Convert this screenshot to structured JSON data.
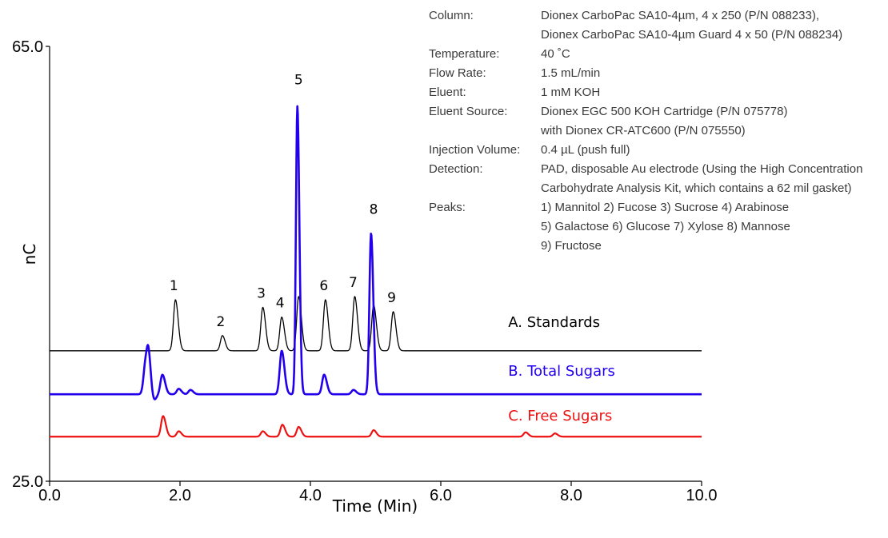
{
  "chart_data": {
    "type": "line",
    "xlabel": "Time (Min)",
    "ylabel": "nC",
    "xlim": [
      0,
      10
    ],
    "ylim": [
      25,
      65
    ],
    "x_ticks": [
      "0.0",
      "2.0",
      "4.0",
      "6.0",
      "8.0",
      "10.0"
    ],
    "y_ticks": [
      "25.0",
      "65.0"
    ],
    "grid": false,
    "series": [
      {
        "name": "A. Standards",
        "color": "#000000",
        "baseline": 37.0,
        "peaks": [
          {
            "label": "1",
            "x": 1.93,
            "y": 41.7
          },
          {
            "label": "2",
            "x": 2.65,
            "y": 38.4
          },
          {
            "label": "3",
            "x": 3.27,
            "y": 41.0
          },
          {
            "label": "4",
            "x": 3.56,
            "y": 40.1
          },
          {
            "label": "5",
            "x": 3.82,
            "y": 42.0
          },
          {
            "label": "6",
            "x": 4.23,
            "y": 41.7
          },
          {
            "label": "7",
            "x": 4.68,
            "y": 42.0
          },
          {
            "label": "8",
            "x": 4.97,
            "y": 41.2
          },
          {
            "label": "9",
            "x": 5.27,
            "y": 40.6
          }
        ]
      },
      {
        "name": "B. Total Sugars",
        "color": "#2200ee",
        "baseline": 33.0,
        "peaks": [
          {
            "x": 1.47,
            "y": 35.6
          },
          {
            "x": 1.52,
            "y": 36.1
          },
          {
            "x": 1.58,
            "y": 32.0
          },
          {
            "x": 1.73,
            "y": 34.8
          },
          {
            "x": 1.98,
            "y": 33.5
          },
          {
            "x": 2.16,
            "y": 33.4
          },
          {
            "x": 3.56,
            "y": 37.0
          },
          {
            "x": 3.8,
            "y": 59.5
          },
          {
            "x": 4.21,
            "y": 34.8
          },
          {
            "x": 4.66,
            "y": 33.4
          },
          {
            "x": 4.93,
            "y": 47.8
          }
        ]
      },
      {
        "name": "C. Free Sugars",
        "color": "#ee1111",
        "baseline": 29.1,
        "peaks": [
          {
            "x": 1.74,
            "y": 31.0
          },
          {
            "x": 1.98,
            "y": 29.6
          },
          {
            "x": 3.27,
            "y": 29.6
          },
          {
            "x": 3.57,
            "y": 30.2
          },
          {
            "x": 3.82,
            "y": 30.0
          },
          {
            "x": 4.97,
            "y": 29.7
          },
          {
            "x": 7.3,
            "y": 29.5
          },
          {
            "x": 7.75,
            "y": 29.4
          }
        ]
      }
    ],
    "annotations": [
      {
        "label": "Column:",
        "value": "Dionex CarboPac SA10-4µm, 4 x 250 (P/N 088233),"
      },
      {
        "label": "",
        "value": "Dionex CarboPac SA10-4µm Guard 4 x 50 (P/N 088234)"
      },
      {
        "label": "Temperature:",
        "value": "40 ˚C"
      },
      {
        "label": "Flow Rate:",
        "value": "1.5 mL/min"
      },
      {
        "label": "Eluent:",
        "value": "1 mM KOH"
      },
      {
        "label": "Eluent Source:",
        "value": "Dionex EGC 500 KOH Cartridge (P/N 075778)"
      },
      {
        "label": "",
        "value": "with Dionex CR-ATC600 (P/N 075550)"
      },
      {
        "label": "Injection Volume:",
        "value": "0.4 µL (push full)"
      },
      {
        "label": "Detection:",
        "value": "PAD, disposable Au electrode (Using the High Concentration"
      },
      {
        "label": "",
        "value": "Carbohydrate Analysis Kit, which contains a 62 mil gasket)"
      },
      {
        "label": "Peaks:",
        "value": "1) Mannitol 2) Fucose 3) Sucrose 4) Arabinose"
      },
      {
        "label": "",
        "value": "5) Galactose 6) Glucose 7) Xylose 8) Mannose"
      },
      {
        "label": "",
        "value": "9) Fructose"
      }
    ]
  }
}
